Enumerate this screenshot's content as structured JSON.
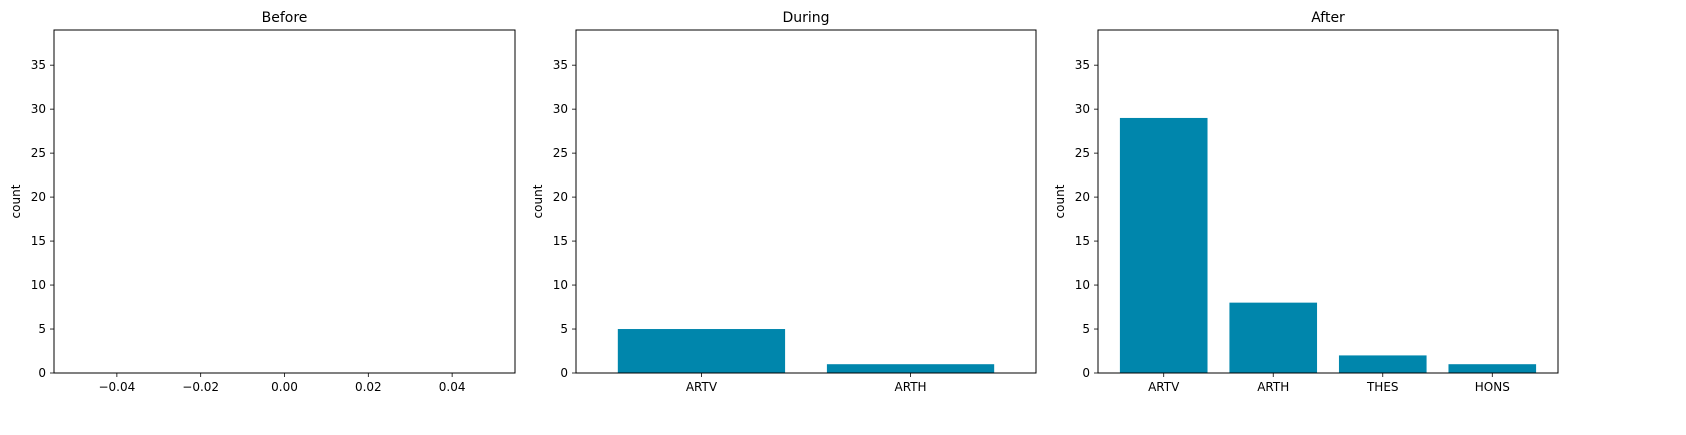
{
  "chart_data": [
    {
      "type": "bar",
      "title": "Before",
      "xlabel": "",
      "ylabel": "count",
      "categories": [],
      "values": [],
      "xlim": [
        -0.055,
        0.055
      ],
      "xticks": [
        "−0.04",
        "−0.02",
        "0.00",
        "0.02",
        "0.04"
      ],
      "ylim": [
        0,
        39
      ],
      "yticks": [
        0,
        5,
        10,
        15,
        20,
        25,
        30,
        35
      ],
      "color": "#0086ac",
      "grid": false
    },
    {
      "type": "bar",
      "title": "During",
      "xlabel": "",
      "ylabel": "count",
      "categories": [
        "ARTV",
        "ARTH"
      ],
      "values": [
        5,
        1
      ],
      "ylim": [
        0,
        39
      ],
      "yticks": [
        0,
        5,
        10,
        15,
        20,
        25,
        30,
        35
      ],
      "color": "#0086ac",
      "grid": false
    },
    {
      "type": "bar",
      "title": "After",
      "xlabel": "",
      "ylabel": "count",
      "categories": [
        "ARTV",
        "ARTH",
        "THES",
        "HONS"
      ],
      "values": [
        29,
        8,
        2,
        1
      ],
      "ylim": [
        0,
        39
      ],
      "yticks": [
        0,
        5,
        10,
        15,
        20,
        25,
        30,
        35
      ],
      "color": "#0086ac",
      "grid": false
    }
  ]
}
